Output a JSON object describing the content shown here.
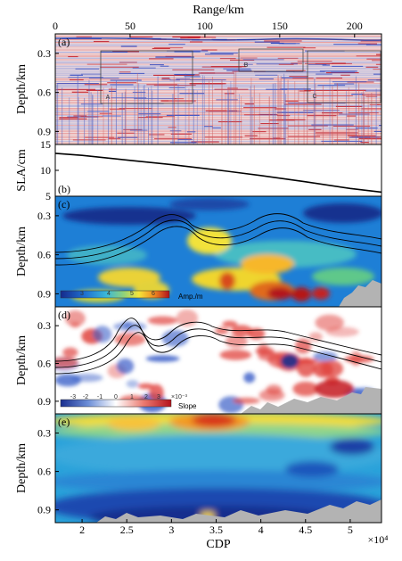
{
  "chart_data": [
    {
      "panel": "(a)",
      "type": "heatmap",
      "description_labels": [
        "A",
        "B",
        "C"
      ],
      "top_axis": {
        "label": "Range/km",
        "ticks": [
          0,
          50,
          100,
          150,
          200
        ],
        "range": [
          0,
          218
        ]
      },
      "ylabel": "Depth/km",
      "yticks": [
        0.3,
        0.6,
        0.9
      ],
      "ylim": [
        0.15,
        1.0
      ]
    },
    {
      "panel": "(b)",
      "type": "line",
      "ylabel": "SLA/cm",
      "yticks": [
        5,
        10,
        15
      ],
      "ylim": [
        5,
        15
      ],
      "x": [
        17000,
        20000,
        25000,
        30000,
        35000,
        40000,
        45000,
        50000,
        53500
      ],
      "y": [
        13.3,
        12.9,
        12.0,
        11.1,
        10.1,
        9.0,
        7.8,
        6.5,
        5.8
      ]
    },
    {
      "panel": "(c)",
      "type": "heatmap",
      "ylabel": "Depth/km",
      "yticks": [
        0.3,
        0.6,
        0.9
      ],
      "ylim": [
        0.15,
        1.0
      ],
      "colorbar": {
        "ticks": [
          "3",
          "4",
          "5",
          "6"
        ],
        "label": "Amp./m"
      }
    },
    {
      "panel": "(d)",
      "type": "heatmap",
      "ylabel": "Depth/km",
      "yticks": [
        0.3,
        0.6,
        0.9
      ],
      "ylim": [
        0.15,
        1.0
      ],
      "colorbar": {
        "ticks": [
          "-3",
          "-2",
          "-1",
          "0",
          "1",
          "2",
          "3"
        ],
        "exponent": "×10⁻³",
        "label": "Slope"
      }
    },
    {
      "panel": "(e)",
      "type": "heatmap",
      "ylabel": "Depth/km",
      "yticks": [
        0.3,
        0.6,
        0.9
      ],
      "ylim": [
        0.15,
        1.0
      ],
      "xlabel": "CDP",
      "xticks": [
        "2",
        "2.5",
        "3",
        "3.5",
        "4",
        "4.5",
        "5"
      ],
      "xtick_values": [
        20000,
        25000,
        30000,
        35000,
        40000,
        45000,
        50000
      ],
      "xlim": [
        17000,
        53500
      ],
      "x_exponent": "×10⁴"
    }
  ]
}
